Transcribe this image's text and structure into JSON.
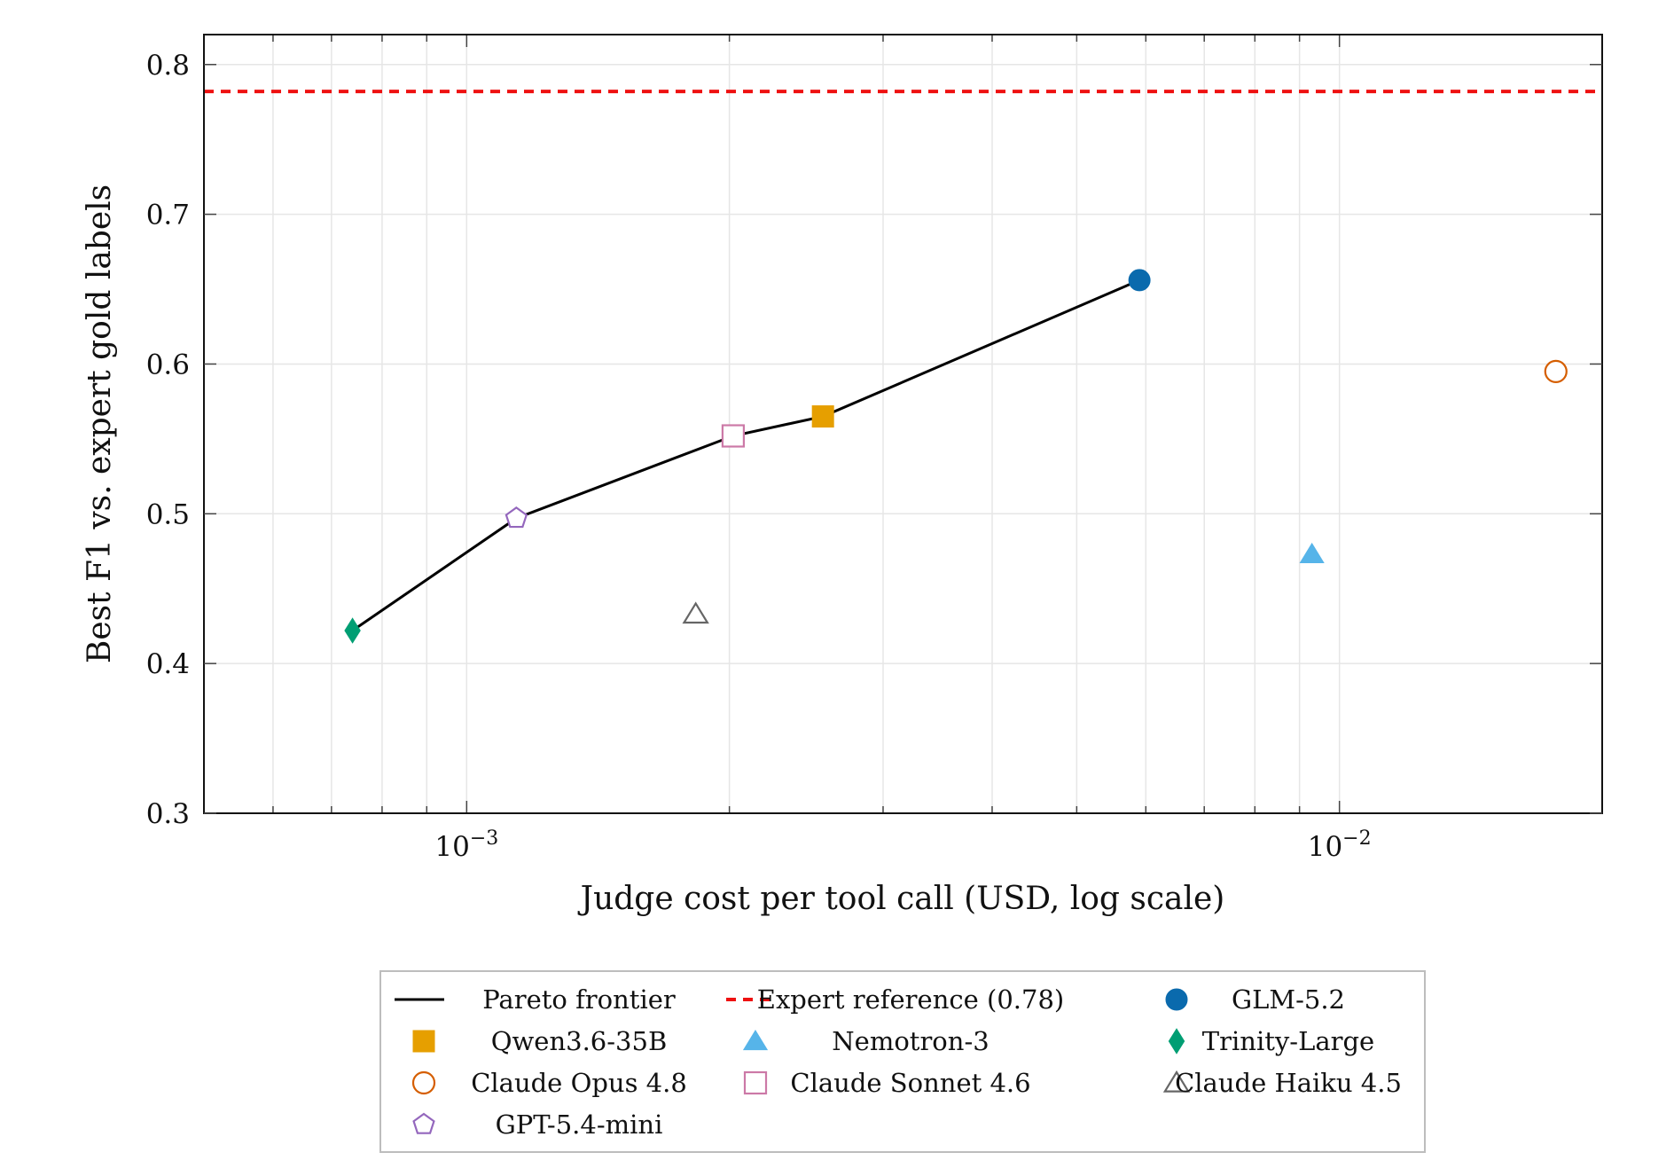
{
  "chart_data": {
    "type": "scatter",
    "xlabel": "Judge cost per tool call (USD, log scale)",
    "ylabel": "Best F1 vs. expert gold labels",
    "x_scale": "log",
    "xlim": [
      0.0005,
      0.02
    ],
    "ylim": [
      0.3,
      0.82
    ],
    "x_ticks": [
      0.001,
      0.01
    ],
    "x_tick_labels": [
      {
        "base": "10",
        "exp": "−3"
      },
      {
        "base": "10",
        "exp": "−2"
      }
    ],
    "y_ticks": [
      0.3,
      0.4,
      0.5,
      0.6,
      0.7,
      0.8
    ],
    "y_tick_labels": [
      "0.3",
      "0.4",
      "0.5",
      "0.6",
      "0.7",
      "0.8"
    ],
    "grid": true,
    "legend_position": "bottom",
    "reference_line": {
      "name": "Expert reference (0.78)",
      "y": 0.782,
      "color": "#ee1111",
      "style": "dashed"
    },
    "pareto_frontier": {
      "name": "Pareto frontier",
      "color": "#000000",
      "points": [
        [
          0.00074,
          0.422
        ],
        [
          0.00114,
          0.497
        ],
        [
          0.00202,
          0.552
        ],
        [
          0.00256,
          0.565
        ],
        [
          0.0059,
          0.656
        ]
      ]
    },
    "series": [
      {
        "name": "GLM-5.2",
        "marker": "circle-filled",
        "color": "#0a6aad",
        "x": 0.0059,
        "y": 0.656
      },
      {
        "name": "Qwen3.6-35B",
        "marker": "square-filled",
        "color": "#e69f00",
        "x": 0.00256,
        "y": 0.565
      },
      {
        "name": "Nemotron-3",
        "marker": "triangle-filled",
        "color": "#56b4e9",
        "x": 0.0093,
        "y": 0.473
      },
      {
        "name": "Trinity-Large",
        "marker": "diamond-filled",
        "color": "#009e73",
        "x": 0.00074,
        "y": 0.422
      },
      {
        "name": "Claude Opus 4.8",
        "marker": "circle-open",
        "color": "#d55e00",
        "x": 0.0177,
        "y": 0.595
      },
      {
        "name": "Claude Sonnet 4.6",
        "marker": "square-open",
        "color": "#cc79a7",
        "x": 0.00202,
        "y": 0.552
      },
      {
        "name": "Claude Haiku 4.5",
        "marker": "triangle-open",
        "color": "#666666",
        "x": 0.00183,
        "y": 0.433
      },
      {
        "name": "GPT-5.4-mini",
        "marker": "pentagon-open",
        "color": "#9467bd",
        "x": 0.00114,
        "y": 0.497
      }
    ],
    "legend_order": [
      "Pareto frontier",
      "Expert reference (0.78)",
      "GLM-5.2",
      "Qwen3.6-35B",
      "Nemotron-3",
      "Trinity-Large",
      "Claude Opus 4.8",
      "Claude Sonnet 4.6",
      "Claude Haiku 4.5",
      "GPT-5.4-mini"
    ]
  }
}
